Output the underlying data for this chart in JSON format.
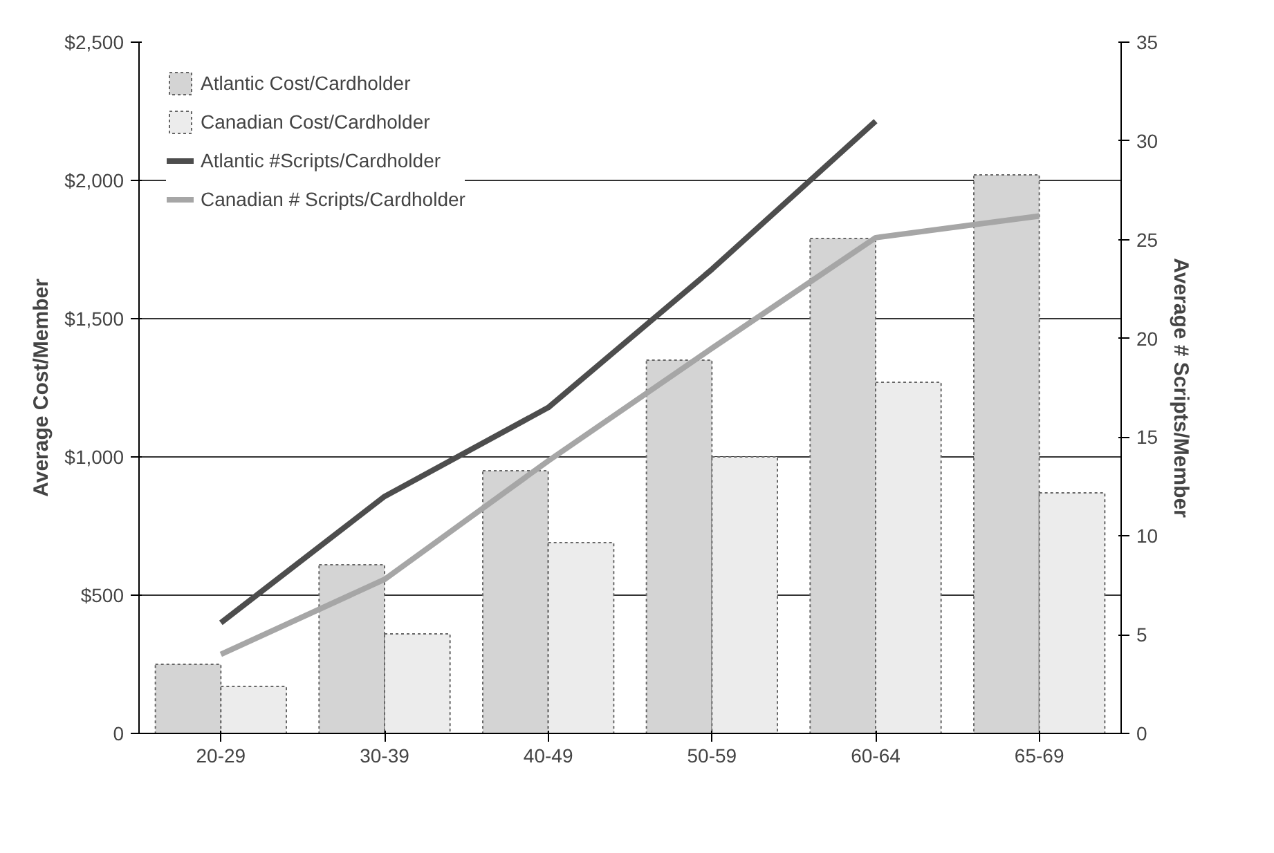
{
  "chart_data": {
    "type": "bar",
    "categories": [
      "20-29",
      "30-39",
      "40-49",
      "50-59",
      "60-64",
      "65-69"
    ],
    "ylabel": "Average Cost/Member",
    "y2label": "Average # Scripts/Member",
    "ylim": [
      0,
      2500
    ],
    "yticks": [
      {
        "value": 0,
        "label": "0"
      },
      {
        "value": 500,
        "label": "$500"
      },
      {
        "value": 1000,
        "label": "$1,000"
      },
      {
        "value": 1500,
        "label": "$1,500"
      },
      {
        "value": 2000,
        "label": "$2,000"
      },
      {
        "value": 2500,
        "label": "$2,500"
      }
    ],
    "y2lim": [
      0,
      35
    ],
    "y2ticks": [
      0,
      5,
      10,
      15,
      20,
      25,
      30,
      35
    ],
    "grid": "y",
    "legend": "top left",
    "series": [
      {
        "name": "Atlantic Cost/Cardholder",
        "color": "#d4d4d4",
        "values": [
          250,
          610,
          950,
          1350,
          1790,
          2020
        ]
      },
      {
        "name": "Canadian Cost/Cardholder",
        "color": "#ececec",
        "values": [
          170,
          360,
          690,
          1000,
          1270,
          870
        ]
      },
      {
        "name": "Atlantic #Scripts/Cardholder",
        "type": "line",
        "axis": "y2",
        "color": "#4d4d4d",
        "values": [
          5.6,
          12,
          16.5,
          23.5,
          31,
          null
        ]
      },
      {
        "name": "Canadian # Scripts/Cardholder",
        "type": "line",
        "axis": "y2",
        "color": "#a6a6a6",
        "values": [
          4,
          7.8,
          13.8,
          19.5,
          25.1,
          26.2
        ]
      }
    ]
  }
}
